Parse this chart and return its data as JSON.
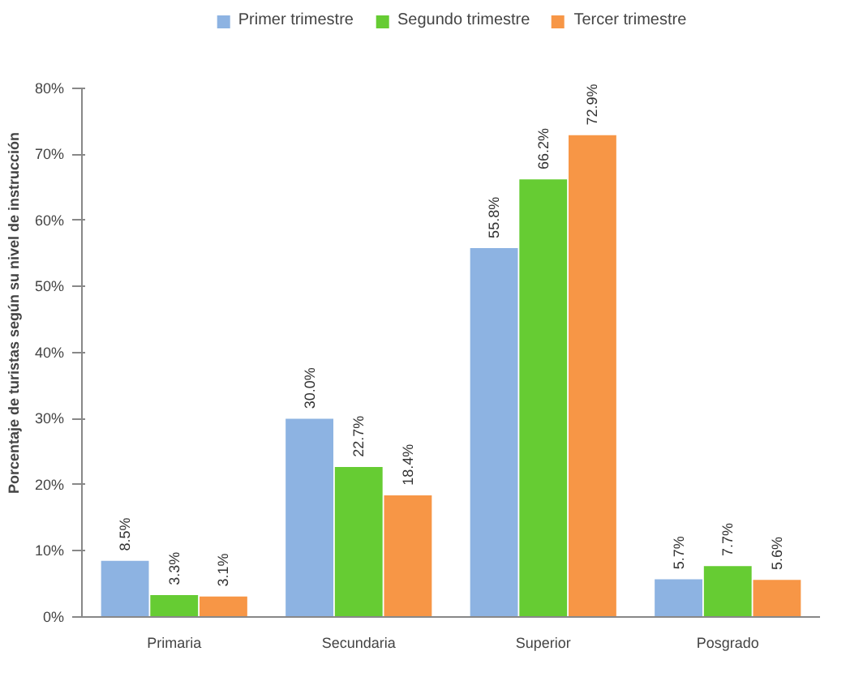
{
  "chart_data": {
    "type": "bar",
    "ylabel": "Porcentaje de turistas según su nivel de instrucción",
    "categories": [
      "Primaria",
      "Secundaria",
      "Superior",
      "Posgrado"
    ],
    "series": [
      {
        "name": "Primer trimestre",
        "color": "#8db3e2",
        "values": [
          8.5,
          30.0,
          55.8,
          5.7
        ],
        "value_labels": [
          "8.5%",
          "30.0%",
          "55.8%",
          "5.7%"
        ]
      },
      {
        "name": "Segundo trimestre",
        "color": "#66cc33",
        "values": [
          3.3,
          22.7,
          66.2,
          7.7
        ],
        "value_labels": [
          "3.3%",
          "22.7%",
          "66.2%",
          "7.7%"
        ]
      },
      {
        "name": "Tercer trimestre",
        "color": "#f79646",
        "values": [
          3.1,
          18.4,
          72.9,
          5.6
        ],
        "value_labels": [
          "3.1%",
          "18.4%",
          "72.9%",
          "5.6%"
        ]
      }
    ],
    "ylim": [
      0,
      80
    ],
    "yticks": [
      {
        "value": 0,
        "label": "0%"
      },
      {
        "value": 10,
        "label": "10%"
      },
      {
        "value": 20,
        "label": "20%"
      },
      {
        "value": 30,
        "label": "30%"
      },
      {
        "value": 40,
        "label": "40%"
      },
      {
        "value": 50,
        "label": "50%"
      },
      {
        "value": 60,
        "label": "60%"
      },
      {
        "value": 70,
        "label": "70%"
      },
      {
        "value": 80,
        "label": "80%"
      }
    ],
    "grid": false,
    "legend": "top"
  }
}
